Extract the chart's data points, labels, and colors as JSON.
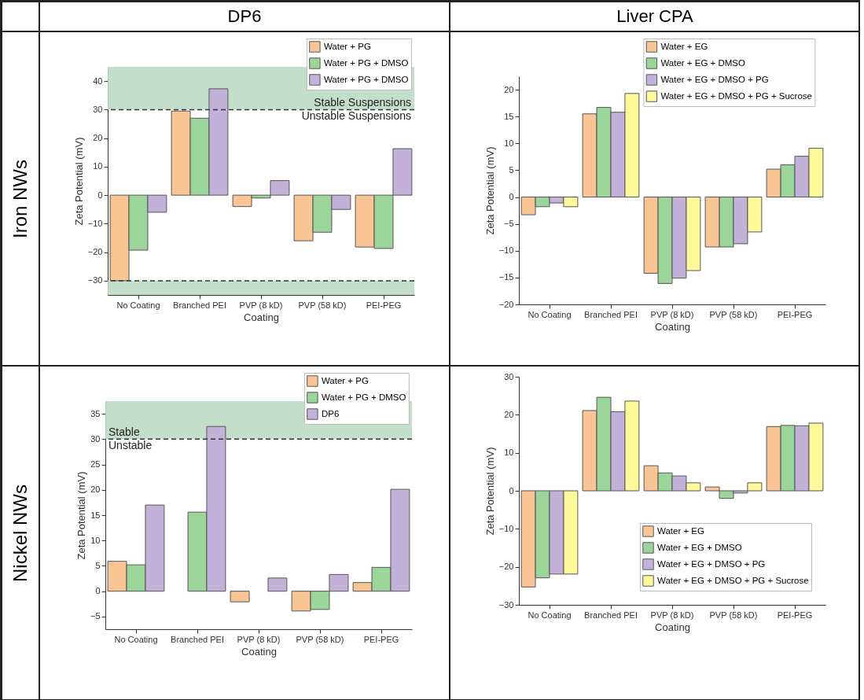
{
  "chart_data": [
    {
      "type": "bar",
      "title": "DP6",
      "annotations": [
        "Iron NWs"
      ],
      "xlabel": "Coating",
      "ylabel": "Zeta Potential (mV)",
      "categories": [
        "No Coating",
        "Branched PEI",
        "PVP (8 kD)",
        "PVP (58 kD)",
        "PEI-PEG"
      ],
      "series": [
        {
          "name": "Water + PG",
          "color": "#fac595",
          "values": [
            -30,
            29.5,
            -4,
            -16,
            -18.2
          ]
        },
        {
          "name": "Water + PG + DMSO",
          "color": "#9bd59a",
          "values": [
            -19.3,
            27,
            -1,
            -13,
            -18.7
          ]
        },
        {
          "name": "Water + PG + DMSO",
          "color": "#c2b1d8",
          "values": [
            -6,
            37.3,
            5.1,
            -5,
            16.3
          ]
        }
      ],
      "ylim": [
        -35,
        45
      ],
      "yticks": [
        -30,
        -20,
        -10,
        0,
        10,
        20,
        30,
        40
      ],
      "bands": [
        {
          "axis": "y",
          "from": 30,
          "to": 45,
          "label": "Stable Suspensions",
          "color": "#bcdcc4"
        },
        {
          "axis": "y",
          "from": -35,
          "to": -30,
          "color": "#bcdcc4"
        }
      ],
      "ref_lines": [
        {
          "axis": "y",
          "value": 30,
          "label": "Unstable Suspensions",
          "line_style": "dashed"
        },
        {
          "axis": "y",
          "value": -30,
          "line_style": "dashed"
        }
      ],
      "legend": "top right"
    },
    {
      "type": "bar",
      "title": "Liver CPA",
      "xlabel": "Coating",
      "ylabel": "Zeta Potential (mV)",
      "categories": [
        "No Coating",
        "Branched PEI",
        "PVP (8 kD)",
        "PVP (58 kD)",
        "PEI-PEG"
      ],
      "series": [
        {
          "name": "Water + EG",
          "color": "#fac595",
          "values": [
            -3.3,
            15.5,
            -14.2,
            -9.3,
            5.2
          ]
        },
        {
          "name": "Water + EG + DMSO",
          "color": "#9bd59a",
          "values": [
            -1.8,
            16.7,
            -16.1,
            -9.3,
            6
          ]
        },
        {
          "name": "Water + EG + DMSO + PG",
          "color": "#c2b1d8",
          "values": [
            -1.1,
            15.8,
            -15.1,
            -8.7,
            7.6
          ]
        },
        {
          "name": "Water + EG + DMSO + PG + Sucrose",
          "color": "#fdf99b",
          "values": [
            -1.8,
            19.3,
            -13.7,
            -6.5,
            9.1
          ]
        }
      ],
      "ylim": [
        -20,
        22.5
      ],
      "yticks": [
        -20,
        -15,
        -10,
        -5,
        0,
        5,
        10,
        15,
        20
      ],
      "legend": "top right"
    },
    {
      "type": "bar",
      "annotations": [
        "Nickel NWs"
      ],
      "xlabel": "Coating",
      "ylabel": "Zeta Potential (mV)",
      "categories": [
        "No Coating",
        "Branched PEI",
        "PVP (8 kD)",
        "PVP (58 kD)",
        "PEI-PEG"
      ],
      "series": [
        {
          "name": "Water + PG",
          "color": "#fac595",
          "values": [
            5.9,
            null,
            -2.1,
            -3.9,
            1.7
          ]
        },
        {
          "name": "Water + PG + DMSO",
          "color": "#9bd59a",
          "values": [
            5.2,
            15.6,
            null,
            -3.6,
            4.7
          ]
        },
        {
          "name": "DP6",
          "color": "#c2b1d8",
          "values": [
            17,
            32.5,
            2.6,
            3.3,
            20.1
          ]
        }
      ],
      "ylim": [
        -7.5,
        37.5
      ],
      "yticks": [
        -5,
        0,
        5,
        10,
        15,
        20,
        25,
        30,
        35
      ],
      "bands": [
        {
          "axis": "y",
          "from": 30,
          "to": 37.5,
          "label": "Stable",
          "color": "#bcdcc4"
        }
      ],
      "ref_lines": [
        {
          "axis": "y",
          "value": 30,
          "label": "Unstable",
          "line_style": "dashed"
        }
      ],
      "legend": "top right"
    },
    {
      "type": "bar",
      "xlabel": "Coating",
      "ylabel": "Zeta Potential (mV)",
      "categories": [
        "No Coating",
        "Branched PEI",
        "PVP (8 kD)",
        "PVP (58 kD)",
        "PEI-PEG"
      ],
      "series": [
        {
          "name": "Water + EG",
          "color": "#fac595",
          "values": [
            -25.3,
            21.1,
            6.6,
            1,
            16.9
          ]
        },
        {
          "name": "Water + EG + DMSO",
          "color": "#9bd59a",
          "values": [
            -22.9,
            24.6,
            4.7,
            -2,
            17.2
          ]
        },
        {
          "name": "Water + EG + DMSO + PG",
          "color": "#c2b1d8",
          "values": [
            -21.9,
            20.8,
            3.9,
            -0.6,
            17.1
          ]
        },
        {
          "name": "Water + EG + DMSO + PG + Sucrose",
          "color": "#fdf99b",
          "values": [
            -21.9,
            23.6,
            2.1,
            2.1,
            17.8
          ]
        }
      ],
      "ylim": [
        -30,
        30
      ],
      "yticks": [
        -30,
        -20,
        -10,
        0,
        10,
        20,
        30
      ],
      "legend": "bottom right"
    }
  ]
}
